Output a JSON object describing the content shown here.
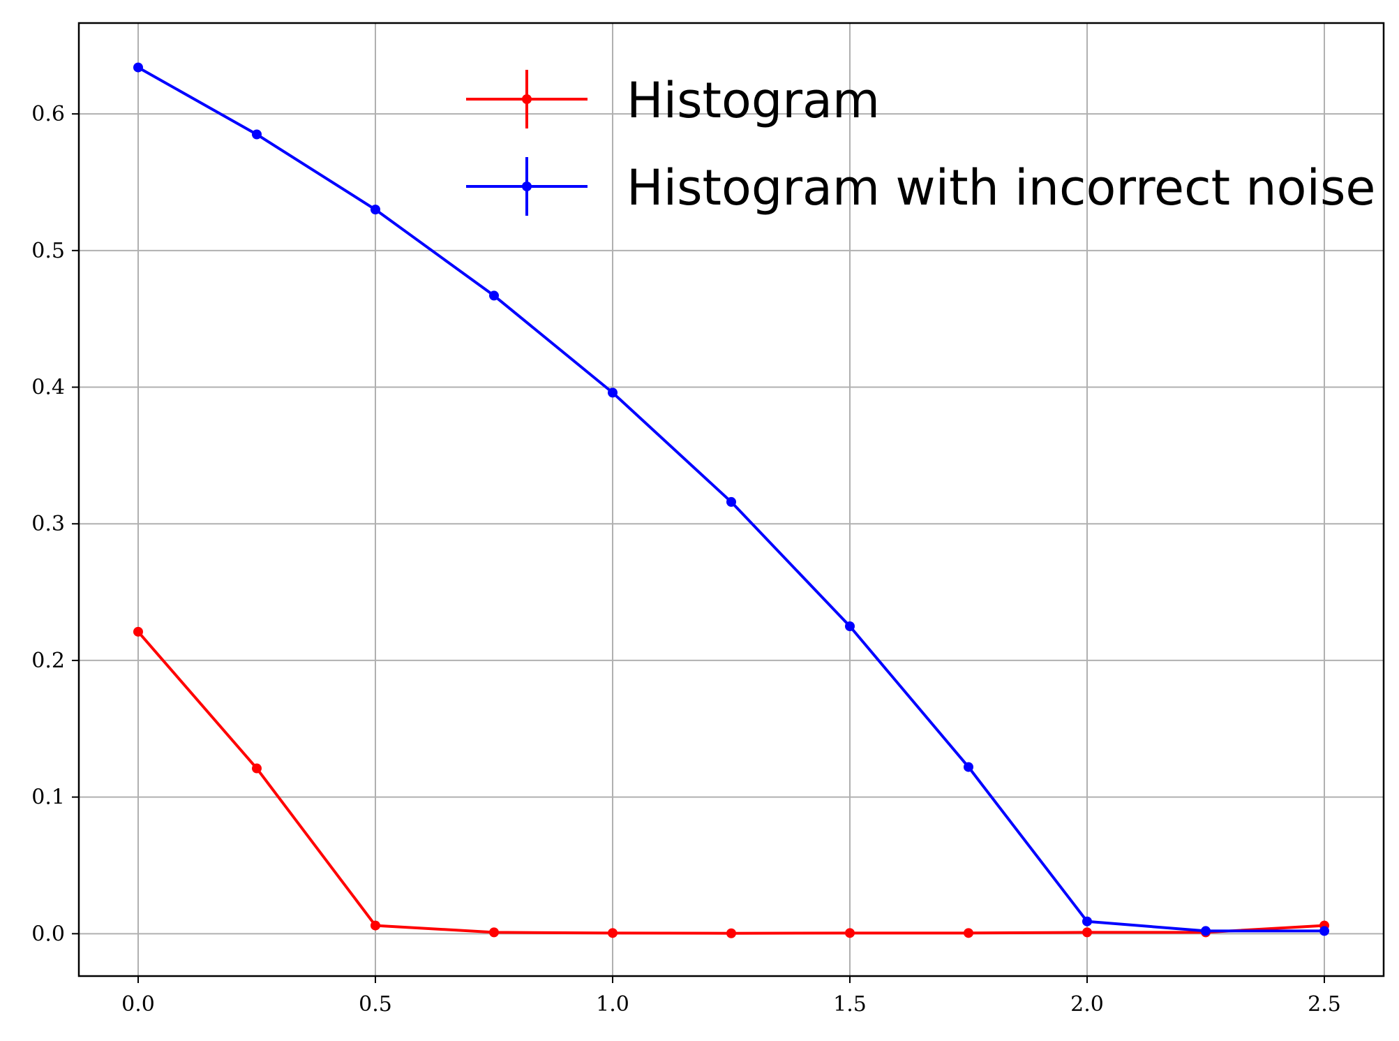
{
  "chart_data": {
    "type": "line",
    "title": "",
    "xlabel": "",
    "ylabel": "",
    "xlim": [
      -0.125,
      2.625
    ],
    "ylim": [
      -0.031,
      0.6665
    ],
    "grid": true,
    "legend_position": "top-right",
    "x": [
      0.0,
      0.25,
      0.5,
      0.75,
      1.0,
      1.25,
      1.5,
      1.75,
      2.0,
      2.25,
      2.5
    ],
    "x_ticks": [
      0.0,
      0.5,
      1.0,
      1.5,
      2.0,
      2.5
    ],
    "x_tick_labels": [
      "0.0",
      "0.5",
      "1.0",
      "1.5",
      "2.0",
      "2.5"
    ],
    "y_ticks": [
      0.0,
      0.1,
      0.2,
      0.3,
      0.4,
      0.5,
      0.6
    ],
    "y_tick_labels": [
      "0.0",
      "0.1",
      "0.2",
      "0.3",
      "0.4",
      "0.5",
      "0.6"
    ],
    "series": [
      {
        "name": "Histogram",
        "color": "#ff0000",
        "values": [
          0.221,
          0.121,
          0.006,
          0.001,
          0.0005,
          0.0003,
          0.0005,
          0.0005,
          0.001,
          0.001,
          0.006
        ]
      },
      {
        "name": "Histogram with incorrect noise",
        "color": "#0000ff",
        "values": [
          0.634,
          0.585,
          0.53,
          0.467,
          0.396,
          0.316,
          0.225,
          0.122,
          0.009,
          0.002,
          0.002
        ]
      }
    ]
  }
}
